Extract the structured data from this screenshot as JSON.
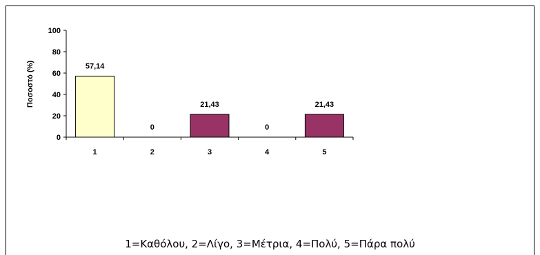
{
  "chart_data": {
    "type": "bar",
    "categories": [
      "1",
      "2",
      "3",
      "4",
      "5"
    ],
    "values": [
      57.14,
      0,
      21.43,
      0,
      21.43
    ],
    "value_labels": [
      "57,14",
      "0",
      "21,43",
      "0",
      "21,43"
    ],
    "bar_colors": [
      "#FFFFCC",
      "#993366",
      "#993366",
      "#993366",
      "#993366"
    ],
    "ylabel": "Ποσοστό (%)",
    "xlabel": "",
    "ylim": [
      0,
      100
    ],
    "yticks": [
      "0",
      "20",
      "40",
      "60",
      "80",
      "100"
    ],
    "grid": false,
    "note": "1=Καθόλου, 2=Λίγο, 3=Μέτρια, 4=Πολύ, 5=Πάρα πολύ"
  }
}
